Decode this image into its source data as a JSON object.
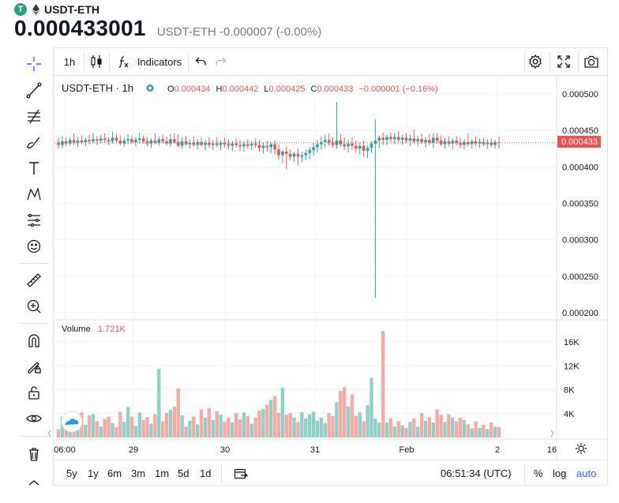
{
  "header": {
    "symbol": "USDT-ETH",
    "price": "0.000433001",
    "change_line": "USDT-ETH -0.000007 (-0.00%)",
    "coin_glyph": "T"
  },
  "toolbar": {
    "interval": "1h",
    "indicators_label": "Indicators"
  },
  "legend": {
    "title": "USDT-ETH · 1h",
    "o_label": "O",
    "o_value": "0.000434",
    "h_label": "H",
    "h_value": "0.000442",
    "l_label": "L",
    "l_value": "0.000425",
    "c_label": "C",
    "c_value": "0.000433",
    "change": "−0.000001 (−0.16%)"
  },
  "volume_legend": {
    "label": "Volume",
    "value": "1.721K"
  },
  "bottom": {
    "ranges": [
      "5y",
      "1y",
      "6m",
      "3m",
      "1m",
      "5d",
      "1d"
    ],
    "time": "06:51:34 (UTC)",
    "percent": "%",
    "log": "log",
    "auto": "auto"
  },
  "colors": {
    "up": "#26a69a",
    "down": "#ef5350",
    "up_vol": "#8fd0c7",
    "down_vol": "#f6a9a6",
    "accent": "#2962ff"
  },
  "chart_data": {
    "type": "candlestick",
    "price_axis": {
      "ticks": [
        "0.000500",
        "0.000450",
        "0.000400",
        "0.000350",
        "0.000300",
        "0.000250",
        "0.000200"
      ],
      "range": [
        0.0002,
        0.0005
      ]
    },
    "last_price_label": "0.000433",
    "volume_axis": {
      "ticks": [
        "16K",
        "12K",
        "8K",
        "4K"
      ],
      "range": [
        0,
        16000
      ]
    },
    "x_ticks": [
      "06:00",
      "29",
      "30",
      "31",
      "Feb",
      "2",
      "16"
    ],
    "spike": {
      "low": 0.00022,
      "high": 0.000465
    },
    "notable_high": 0.000489,
    "volume_max": 17800,
    "series": [
      {
        "o": 0.000433,
        "h": 0.00044,
        "l": 0.000425,
        "c": 0.00043,
        "v": 1400
      },
      {
        "o": 0.00043,
        "h": 0.000442,
        "l": 0.000426,
        "c": 0.000435,
        "v": 3500
      },
      {
        "o": 0.000435,
        "h": 0.00044,
        "l": 0.000428,
        "c": 0.000432,
        "v": 2100
      },
      {
        "o": 0.000432,
        "h": 0.000441,
        "l": 0.000429,
        "c": 0.000437,
        "v": 1600
      },
      {
        "o": 0.000437,
        "h": 0.000446,
        "l": 0.00043,
        "c": 0.000433,
        "v": 2600
      },
      {
        "o": 0.000433,
        "h": 0.000441,
        "l": 0.000427,
        "c": 0.000436,
        "v": 1300
      },
      {
        "o": 0.000436,
        "h": 0.000443,
        "l": 0.000431,
        "c": 0.000434,
        "v": 4200
      },
      {
        "o": 0.000434,
        "h": 0.00044,
        "l": 0.000428,
        "c": 0.000437,
        "v": 2100
      },
      {
        "o": 0.000437,
        "h": 0.000444,
        "l": 0.000431,
        "c": 0.000435,
        "v": 3700
      },
      {
        "o": 0.000435,
        "h": 0.000447,
        "l": 0.000432,
        "c": 0.000438,
        "v": 3900
      },
      {
        "o": 0.000438,
        "h": 0.000442,
        "l": 0.00043,
        "c": 0.000436,
        "v": 2700
      },
      {
        "o": 0.000436,
        "h": 0.000444,
        "l": 0.000432,
        "c": 0.000439,
        "v": 1800
      },
      {
        "o": 0.000439,
        "h": 0.000446,
        "l": 0.000433,
        "c": 0.000437,
        "v": 3100
      },
      {
        "o": 0.000437,
        "h": 0.000441,
        "l": 0.00043,
        "c": 0.000435,
        "v": 3500
      },
      {
        "o": 0.000435,
        "h": 0.000448,
        "l": 0.000432,
        "c": 0.00044,
        "v": 2400
      },
      {
        "o": 0.00044,
        "h": 0.000445,
        "l": 0.000433,
        "c": 0.000436,
        "v": 1700
      },
      {
        "o": 0.000436,
        "h": 0.000443,
        "l": 0.00043,
        "c": 0.000432,
        "v": 4300
      },
      {
        "o": 0.000432,
        "h": 0.00044,
        "l": 0.000428,
        "c": 0.000436,
        "v": 2600
      },
      {
        "o": 0.000436,
        "h": 0.000445,
        "l": 0.000431,
        "c": 0.000438,
        "v": 5100
      },
      {
        "o": 0.000438,
        "h": 0.000443,
        "l": 0.000432,
        "c": 0.000434,
        "v": 3500
      },
      {
        "o": 0.000434,
        "h": 0.000441,
        "l": 0.000428,
        "c": 0.000437,
        "v": 1900
      },
      {
        "o": 0.000437,
        "h": 0.000447,
        "l": 0.000432,
        "c": 0.000439,
        "v": 4200
      },
      {
        "o": 0.000439,
        "h": 0.000443,
        "l": 0.000432,
        "c": 0.000435,
        "v": 2900
      },
      {
        "o": 0.000435,
        "h": 0.000441,
        "l": 0.000428,
        "c": 0.000432,
        "v": 3400
      },
      {
        "o": 0.000432,
        "h": 0.000439,
        "l": 0.000426,
        "c": 0.000436,
        "v": 2300
      },
      {
        "o": 0.000436,
        "h": 0.000446,
        "l": 0.000431,
        "c": 0.000433,
        "v": 3900
      },
      {
        "o": 0.000433,
        "h": 0.000442,
        "l": 0.000429,
        "c": 0.000438,
        "v": 11500
      },
      {
        "o": 0.000438,
        "h": 0.000444,
        "l": 0.000432,
        "c": 0.000435,
        "v": 2700
      },
      {
        "o": 0.000435,
        "h": 0.000441,
        "l": 0.000429,
        "c": 0.000432,
        "v": 4100
      },
      {
        "o": 0.000432,
        "h": 0.000445,
        "l": 0.000428,
        "c": 0.000438,
        "v": 4600
      },
      {
        "o": 0.000438,
        "h": 0.000446,
        "l": 0.000432,
        "c": 0.000434,
        "v": 5200
      },
      {
        "o": 0.000434,
        "h": 0.000445,
        "l": 0.000427,
        "c": 0.000429,
        "v": 8200
      },
      {
        "o": 0.000429,
        "h": 0.000441,
        "l": 0.000425,
        "c": 0.000435,
        "v": 3700
      },
      {
        "o": 0.000435,
        "h": 0.000442,
        "l": 0.000429,
        "c": 0.000431,
        "v": 1800
      },
      {
        "o": 0.000431,
        "h": 0.000438,
        "l": 0.000425,
        "c": 0.000433,
        "v": 2800
      },
      {
        "o": 0.000433,
        "h": 0.000442,
        "l": 0.000428,
        "c": 0.00043,
        "v": 3500
      },
      {
        "o": 0.00043,
        "h": 0.000438,
        "l": 0.000424,
        "c": 0.000434,
        "v": 2200
      },
      {
        "o": 0.000434,
        "h": 0.000441,
        "l": 0.000428,
        "c": 0.00043,
        "v": 4700
      },
      {
        "o": 0.00043,
        "h": 0.000437,
        "l": 0.000423,
        "c": 0.000433,
        "v": 3300
      },
      {
        "o": 0.000433,
        "h": 0.000441,
        "l": 0.000426,
        "c": 0.00043,
        "v": 4900
      },
      {
        "o": 0.00043,
        "h": 0.000437,
        "l": 0.000423,
        "c": 0.000432,
        "v": 2900
      },
      {
        "o": 0.000432,
        "h": 0.00044,
        "l": 0.000427,
        "c": 0.00043,
        "v": 4400
      },
      {
        "o": 0.00043,
        "h": 0.000436,
        "l": 0.000423,
        "c": 0.000433,
        "v": 3800
      },
      {
        "o": 0.000433,
        "h": 0.00044,
        "l": 0.000427,
        "c": 0.000431,
        "v": 2600
      },
      {
        "o": 0.000431,
        "h": 0.000438,
        "l": 0.000424,
        "c": 0.000429,
        "v": 3300
      },
      {
        "o": 0.000429,
        "h": 0.000436,
        "l": 0.000422,
        "c": 0.000432,
        "v": 2500
      },
      {
        "o": 0.000432,
        "h": 0.000439,
        "l": 0.000426,
        "c": 0.00043,
        "v": 4100
      },
      {
        "o": 0.00043,
        "h": 0.000437,
        "l": 0.000422,
        "c": 0.000428,
        "v": 3000
      },
      {
        "o": 0.000428,
        "h": 0.000435,
        "l": 0.000421,
        "c": 0.000431,
        "v": 4200
      },
      {
        "o": 0.000431,
        "h": 0.000438,
        "l": 0.000425,
        "c": 0.000429,
        "v": 3600
      },
      {
        "o": 0.000429,
        "h": 0.000436,
        "l": 0.000423,
        "c": 0.000432,
        "v": 2300
      },
      {
        "o": 0.000432,
        "h": 0.000439,
        "l": 0.000426,
        "c": 0.00043,
        "v": 3300
      },
      {
        "o": 0.00043,
        "h": 0.000437,
        "l": 0.000421,
        "c": 0.000426,
        "v": 4500
      },
      {
        "o": 0.000426,
        "h": 0.000434,
        "l": 0.000418,
        "c": 0.000429,
        "v": 4800
      },
      {
        "o": 0.000429,
        "h": 0.000436,
        "l": 0.000421,
        "c": 0.000427,
        "v": 5500
      },
      {
        "o": 0.000427,
        "h": 0.000434,
        "l": 0.000419,
        "c": 0.000431,
        "v": 6300
      },
      {
        "o": 0.000431,
        "h": 0.000437,
        "l": 0.000417,
        "c": 0.000424,
        "v": 6900
      },
      {
        "o": 0.000424,
        "h": 0.000431,
        "l": 0.00041,
        "c": 0.000416,
        "v": 4100
      },
      {
        "o": 0.000416,
        "h": 0.000423,
        "l": 0.000405,
        "c": 0.000421,
        "v": 8300
      },
      {
        "o": 0.000421,
        "h": 0.000428,
        "l": 0.000397,
        "c": 0.000418,
        "v": 3800
      },
      {
        "o": 0.000418,
        "h": 0.000424,
        "l": 0.000409,
        "c": 0.000414,
        "v": 4100
      },
      {
        "o": 0.000414,
        "h": 0.000421,
        "l": 0.000407,
        "c": 0.000418,
        "v": 3300
      },
      {
        "o": 0.000418,
        "h": 0.000425,
        "l": 0.000402,
        "c": 0.000414,
        "v": 2600
      },
      {
        "o": 0.000414,
        "h": 0.000421,
        "l": 0.000406,
        "c": 0.000416,
        "v": 4200
      },
      {
        "o": 0.000416,
        "h": 0.000424,
        "l": 0.000409,
        "c": 0.000419,
        "v": 3200
      },
      {
        "o": 0.000419,
        "h": 0.000427,
        "l": 0.000411,
        "c": 0.000423,
        "v": 3900
      },
      {
        "o": 0.000423,
        "h": 0.000433,
        "l": 0.000415,
        "c": 0.000427,
        "v": 4300
      },
      {
        "o": 0.000427,
        "h": 0.000437,
        "l": 0.00042,
        "c": 0.000431,
        "v": 2800
      },
      {
        "o": 0.000431,
        "h": 0.000442,
        "l": 0.000424,
        "c": 0.000434,
        "v": 3300
      },
      {
        "o": 0.000434,
        "h": 0.000444,
        "l": 0.000427,
        "c": 0.000437,
        "v": 2400
      },
      {
        "o": 0.000437,
        "h": 0.000446,
        "l": 0.000429,
        "c": 0.000433,
        "v": 4100
      },
      {
        "o": 0.000433,
        "h": 0.000441,
        "l": 0.000426,
        "c": 0.00043,
        "v": 3600
      },
      {
        "o": 0.00043,
        "h": 0.000489,
        "l": 0.000425,
        "c": 0.000436,
        "v": 5900
      },
      {
        "o": 0.000436,
        "h": 0.000445,
        "l": 0.000427,
        "c": 0.000431,
        "v": 7800
      },
      {
        "o": 0.000431,
        "h": 0.00044,
        "l": 0.000423,
        "c": 0.000428,
        "v": 8400
      },
      {
        "o": 0.000428,
        "h": 0.000437,
        "l": 0.00042,
        "c": 0.000432,
        "v": 5200
      },
      {
        "o": 0.000432,
        "h": 0.00044,
        "l": 0.000424,
        "c": 0.000429,
        "v": 7200
      },
      {
        "o": 0.000429,
        "h": 0.000436,
        "l": 0.00042,
        "c": 0.000425,
        "v": 3600
      },
      {
        "o": 0.000425,
        "h": 0.000433,
        "l": 0.000417,
        "c": 0.000429,
        "v": 4200
      },
      {
        "o": 0.000429,
        "h": 0.000436,
        "l": 0.000414,
        "c": 0.000422,
        "v": 2700
      },
      {
        "o": 0.000422,
        "h": 0.00043,
        "l": 0.000412,
        "c": 0.000426,
        "v": 5400
      },
      {
        "o": 0.000426,
        "h": 0.000435,
        "l": 0.000419,
        "c": 0.000432,
        "v": 10000
      },
      {
        "o": 0.000432,
        "h": 0.00044,
        "l": 0.000424,
        "c": 0.000436,
        "v": 3100
      },
      {
        "o": 0.000436,
        "h": 0.000443,
        "l": 0.000426,
        "c": 0.00044,
        "v": 2500
      },
      {
        "o": 0.00044,
        "h": 0.000447,
        "l": 0.00043,
        "c": 0.000437,
        "v": 17800
      },
      {
        "o": 0.000437,
        "h": 0.000444,
        "l": 0.00043,
        "c": 0.000441,
        "v": 2500
      },
      {
        "o": 0.000441,
        "h": 0.000447,
        "l": 0.000434,
        "c": 0.000438,
        "v": 3200
      },
      {
        "o": 0.000438,
        "h": 0.000446,
        "l": 0.000431,
        "c": 0.000441,
        "v": 1800
      },
      {
        "o": 0.000441,
        "h": 0.000449,
        "l": 0.000434,
        "c": 0.000437,
        "v": 2700
      },
      {
        "o": 0.000437,
        "h": 0.000444,
        "l": 0.00043,
        "c": 0.00044,
        "v": 2000
      },
      {
        "o": 0.00044,
        "h": 0.000447,
        "l": 0.000433,
        "c": 0.000436,
        "v": 1600
      },
      {
        "o": 0.000436,
        "h": 0.000444,
        "l": 0.000429,
        "c": 0.000439,
        "v": 2600
      },
      {
        "o": 0.000439,
        "h": 0.000451,
        "l": 0.000432,
        "c": 0.000435,
        "v": 3200
      },
      {
        "o": 0.000435,
        "h": 0.000443,
        "l": 0.000428,
        "c": 0.000438,
        "v": 1800
      },
      {
        "o": 0.000438,
        "h": 0.000446,
        "l": 0.000431,
        "c": 0.000434,
        "v": 4100
      },
      {
        "o": 0.000434,
        "h": 0.000441,
        "l": 0.000427,
        "c": 0.000437,
        "v": 2800
      },
      {
        "o": 0.000437,
        "h": 0.000445,
        "l": 0.00043,
        "c": 0.000433,
        "v": 3400
      },
      {
        "o": 0.000433,
        "h": 0.000446,
        "l": 0.000426,
        "c": 0.00044,
        "v": 2500
      },
      {
        "o": 0.00044,
        "h": 0.000447,
        "l": 0.000432,
        "c": 0.000436,
        "v": 4700
      },
      {
        "o": 0.000436,
        "h": 0.000443,
        "l": 0.000429,
        "c": 0.000431,
        "v": 3800
      },
      {
        "o": 0.000431,
        "h": 0.00044,
        "l": 0.000425,
        "c": 0.000435,
        "v": 2600
      },
      {
        "o": 0.000435,
        "h": 0.000442,
        "l": 0.000428,
        "c": 0.000432,
        "v": 3900
      },
      {
        "o": 0.000432,
        "h": 0.000439,
        "l": 0.000424,
        "c": 0.000436,
        "v": 3300
      },
      {
        "o": 0.000436,
        "h": 0.000442,
        "l": 0.000429,
        "c": 0.000433,
        "v": 2700
      },
      {
        "o": 0.000433,
        "h": 0.00044,
        "l": 0.000426,
        "c": 0.00043,
        "v": 3300
      },
      {
        "o": 0.00043,
        "h": 0.000438,
        "l": 0.000424,
        "c": 0.000434,
        "v": 2900
      },
      {
        "o": 0.000434,
        "h": 0.000446,
        "l": 0.000428,
        "c": 0.000431,
        "v": 2200
      },
      {
        "o": 0.000431,
        "h": 0.000438,
        "l": 0.000425,
        "c": 0.000435,
        "v": 1500
      },
      {
        "o": 0.000435,
        "h": 0.000442,
        "l": 0.000428,
        "c": 0.000432,
        "v": 2700
      },
      {
        "o": 0.000432,
        "h": 0.000439,
        "l": 0.000426,
        "c": 0.000434,
        "v": 1600
      },
      {
        "o": 0.000434,
        "h": 0.00044,
        "l": 0.000428,
        "c": 0.000431,
        "v": 2100
      },
      {
        "o": 0.000431,
        "h": 0.000438,
        "l": 0.000425,
        "c": 0.000433,
        "v": 1400
      },
      {
        "o": 0.000433,
        "h": 0.000439,
        "l": 0.000427,
        "c": 0.00043,
        "v": 2500
      },
      {
        "o": 0.00043,
        "h": 0.000437,
        "l": 0.000425,
        "c": 0.000434,
        "v": 1800
      },
      {
        "o": 0.000434,
        "h": 0.000442,
        "l": 0.000425,
        "c": 0.000433,
        "v": 1721
      }
    ]
  }
}
